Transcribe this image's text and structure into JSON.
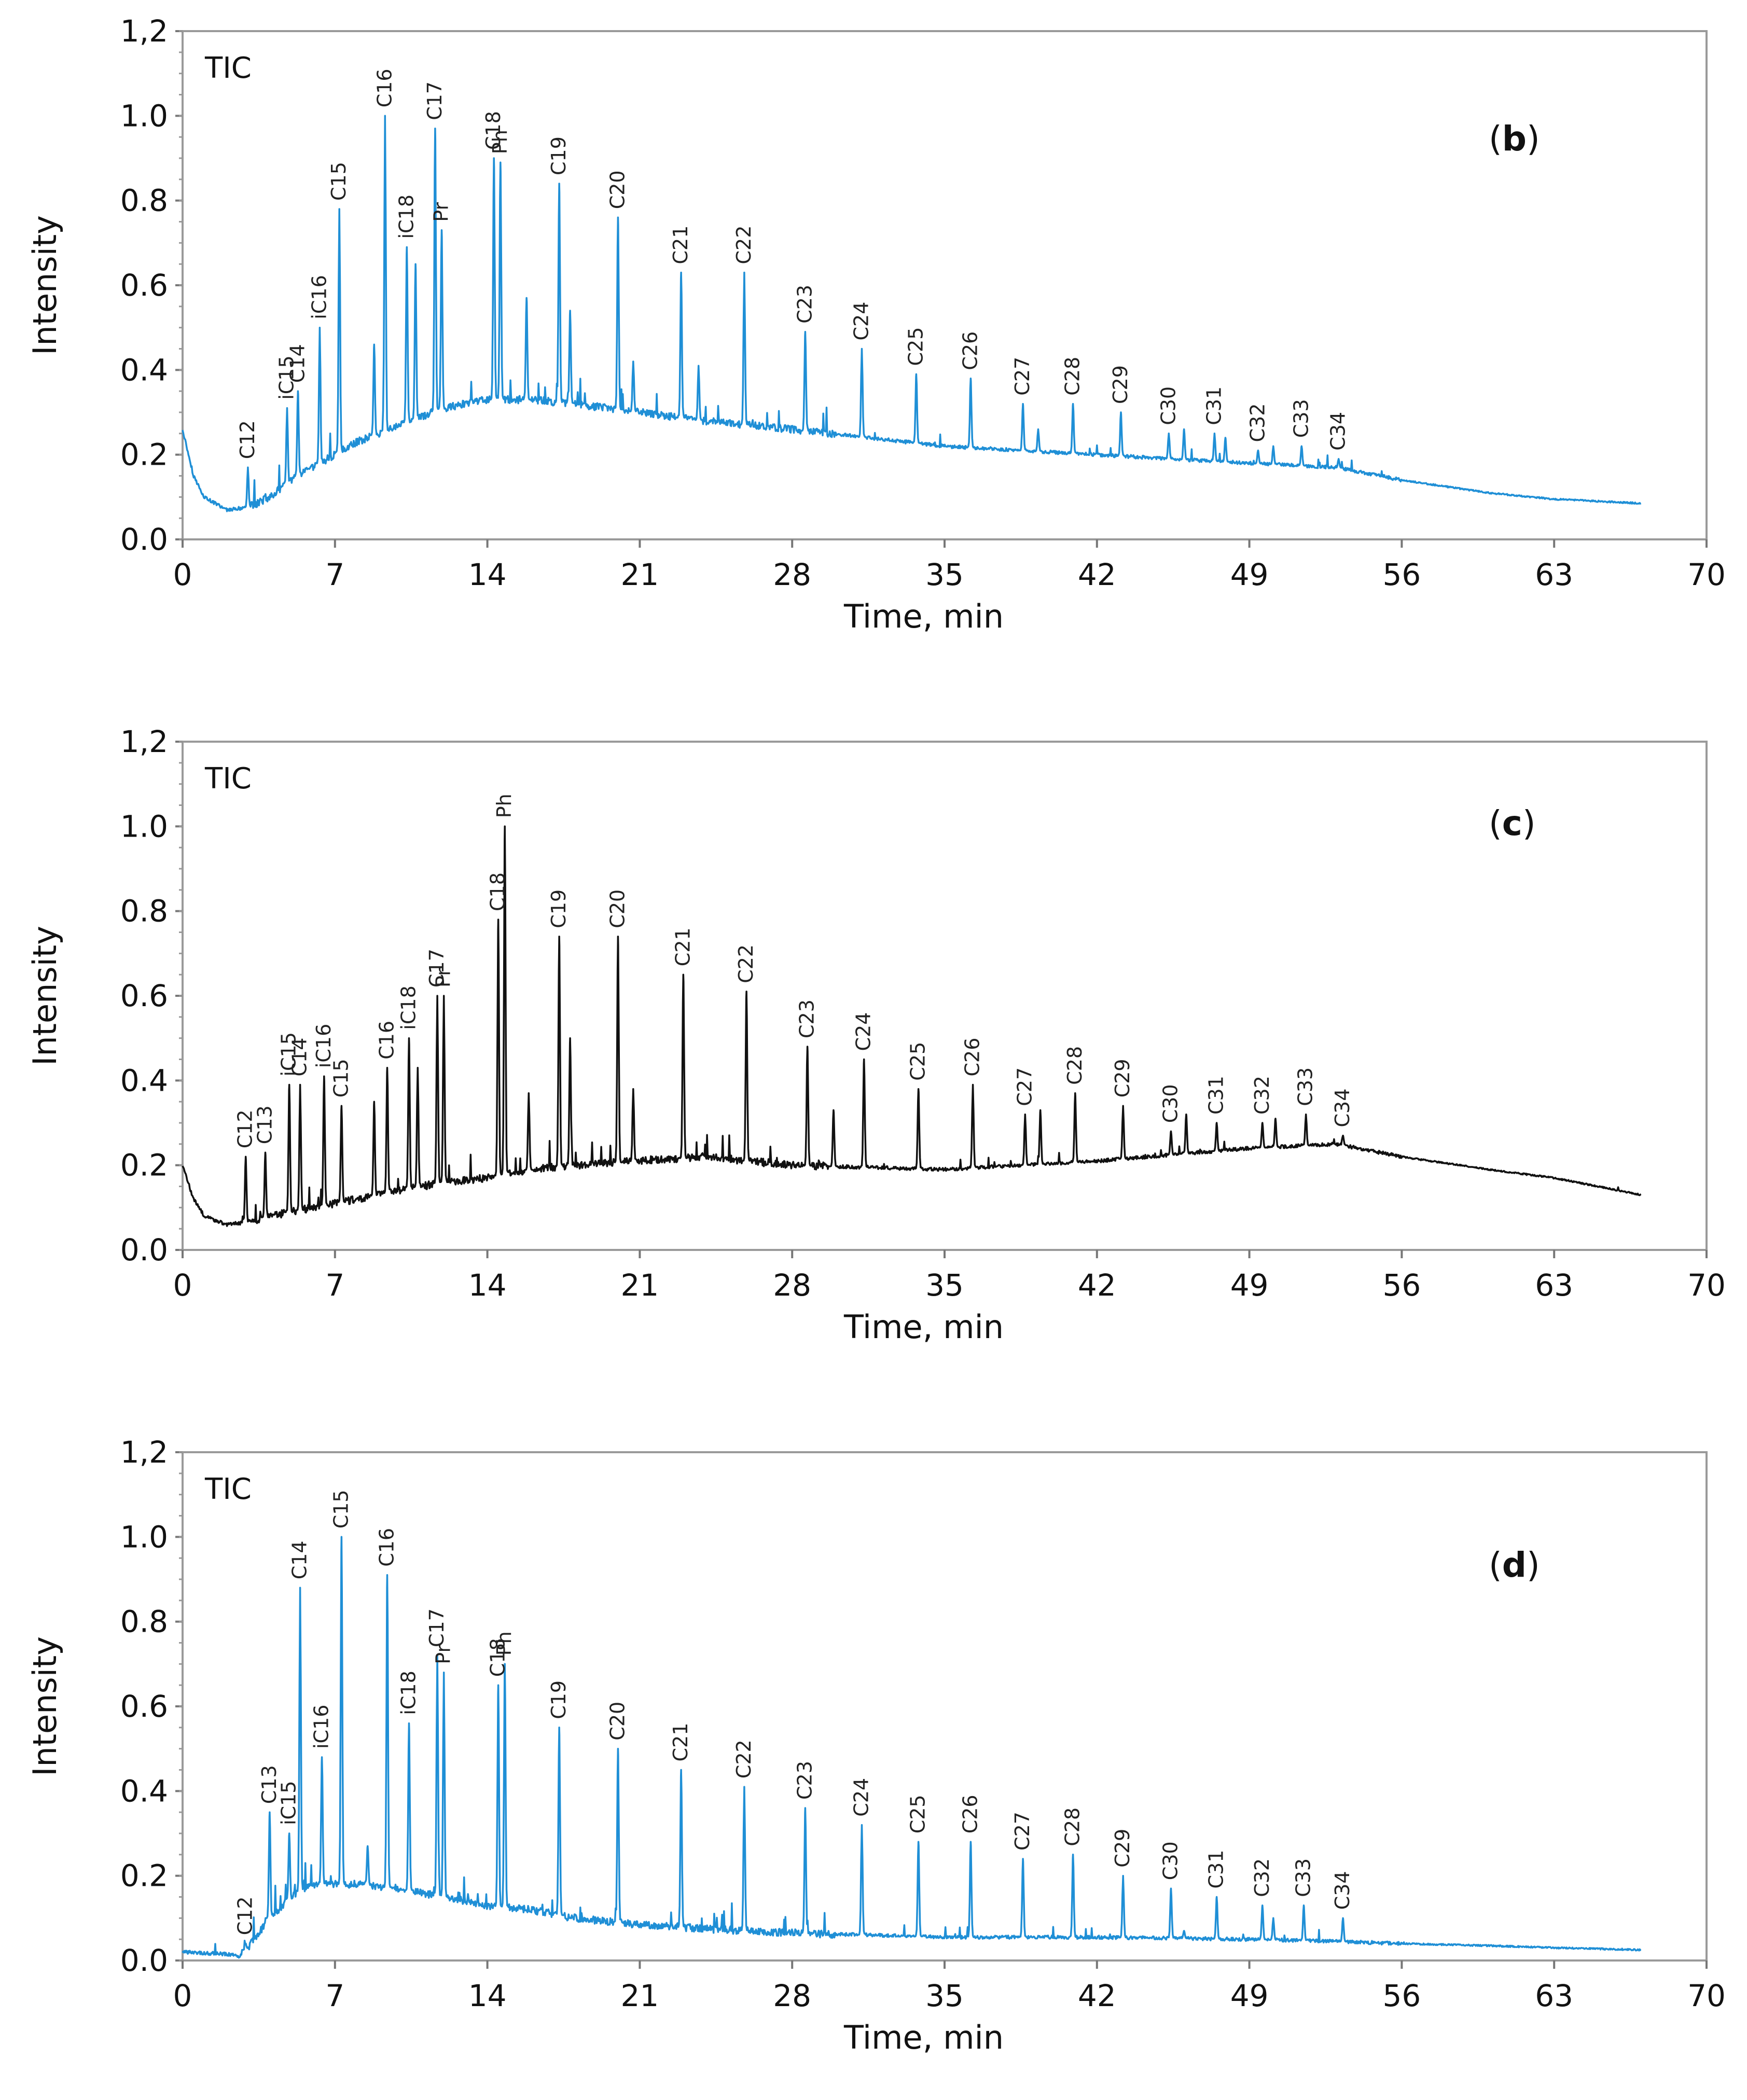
{
  "chart_data": [
    {
      "type": "line",
      "panel": "b",
      "panel_tag": {
        "open": "(",
        "letter": "b",
        "close": ")"
      },
      "tic_label": "TIC",
      "xlabel": "Time, min",
      "ylabel": "Intensity",
      "xlim": [
        0,
        70
      ],
      "ylim": [
        0,
        1.2
      ],
      "xticks": [
        0,
        7,
        14,
        21,
        28,
        35,
        42,
        49,
        56,
        63,
        70
      ],
      "yticks": [
        "0.0",
        "0.2",
        "0.4",
        "0.6",
        "0.8",
        "1.0",
        "1,2"
      ],
      "color": "#1f8fd6",
      "baseline": [
        [
          0,
          0.26
        ],
        [
          0.5,
          0.15
        ],
        [
          1,
          0.1
        ],
        [
          2,
          0.07
        ],
        [
          3,
          0.075
        ],
        [
          4,
          0.1
        ],
        [
          5,
          0.14
        ],
        [
          6,
          0.17
        ],
        [
          7,
          0.2
        ],
        [
          8,
          0.23
        ],
        [
          10,
          0.27
        ],
        [
          12,
          0.31
        ],
        [
          14,
          0.33
        ],
        [
          16,
          0.33
        ],
        [
          18,
          0.32
        ],
        [
          21,
          0.3
        ],
        [
          24,
          0.28
        ],
        [
          28,
          0.26
        ],
        [
          35,
          0.22
        ],
        [
          42,
          0.2
        ],
        [
          49,
          0.18
        ],
        [
          53,
          0.17
        ],
        [
          56,
          0.14
        ],
        [
          60,
          0.11
        ],
        [
          63,
          0.095
        ],
        [
          67,
          0.085
        ]
      ],
      "end_x": 67,
      "peaks": [
        {
          "label": "C12",
          "x": 3.0,
          "y": 0.17
        },
        {
          "label": "iC15",
          "x": 4.8,
          "y": 0.31
        },
        {
          "label": "C14",
          "x": 5.3,
          "y": 0.35
        },
        {
          "label": "iC16",
          "x": 6.3,
          "y": 0.5
        },
        {
          "label": "C15",
          "x": 7.2,
          "y": 0.78
        },
        {
          "label": "",
          "x": 8.8,
          "y": 0.46
        },
        {
          "label": "C16",
          "x": 9.3,
          "y": 1.0
        },
        {
          "label": "iC18",
          "x": 10.3,
          "y": 0.69
        },
        {
          "label": "",
          "x": 10.7,
          "y": 0.65
        },
        {
          "label": "C17",
          "x": 11.6,
          "y": 0.97
        },
        {
          "label": "Pr",
          "x": 11.9,
          "y": 0.73
        },
        {
          "label": "C18",
          "x": 14.3,
          "y": 0.9
        },
        {
          "label": "Ph",
          "x": 14.6,
          "y": 0.89
        },
        {
          "label": "",
          "x": 15.8,
          "y": 0.57
        },
        {
          "label": "C19",
          "x": 17.3,
          "y": 0.84
        },
        {
          "label": "",
          "x": 17.8,
          "y": 0.54
        },
        {
          "label": "C20",
          "x": 20.0,
          "y": 0.76
        },
        {
          "label": "",
          "x": 20.7,
          "y": 0.42
        },
        {
          "label": "C21",
          "x": 22.9,
          "y": 0.63
        },
        {
          "label": "",
          "x": 23.7,
          "y": 0.41
        },
        {
          "label": "C22",
          "x": 25.8,
          "y": 0.63
        },
        {
          "label": "C23",
          "x": 28.6,
          "y": 0.49
        },
        {
          "label": "C24",
          "x": 31.2,
          "y": 0.45
        },
        {
          "label": "C25",
          "x": 33.7,
          "y": 0.39
        },
        {
          "label": "C26",
          "x": 36.2,
          "y": 0.38
        },
        {
          "label": "C27",
          "x": 38.6,
          "y": 0.32
        },
        {
          "label": "",
          "x": 39.3,
          "y": 0.26
        },
        {
          "label": "C28",
          "x": 40.9,
          "y": 0.32
        },
        {
          "label": "C29",
          "x": 43.1,
          "y": 0.3
        },
        {
          "label": "C30",
          "x": 45.3,
          "y": 0.25
        },
        {
          "label": "",
          "x": 46.0,
          "y": 0.26
        },
        {
          "label": "C31",
          "x": 47.4,
          "y": 0.25
        },
        {
          "label": "",
          "x": 47.9,
          "y": 0.24
        },
        {
          "label": "C32",
          "x": 49.4,
          "y": 0.21
        },
        {
          "label": "",
          "x": 50.1,
          "y": 0.22
        },
        {
          "label": "C33",
          "x": 51.4,
          "y": 0.22
        },
        {
          "label": "C34",
          "x": 53.1,
          "y": 0.19
        }
      ]
    },
    {
      "type": "line",
      "panel": "c",
      "panel_tag": {
        "open": "(",
        "letter": "c",
        "close": ")"
      },
      "tic_label": "TIC",
      "xlabel": "Time, min",
      "ylabel": "Intensity",
      "xlim": [
        0,
        70
      ],
      "ylim": [
        0,
        1.2
      ],
      "xticks": [
        0,
        7,
        14,
        21,
        28,
        35,
        42,
        49,
        56,
        63,
        70
      ],
      "yticks": [
        "0.0",
        "0.2",
        "0.4",
        "0.6",
        "0.8",
        "1.0",
        "1,2"
      ],
      "color": "#111111",
      "baseline": [
        [
          0,
          0.2
        ],
        [
          0.5,
          0.12
        ],
        [
          1,
          0.08
        ],
        [
          2,
          0.06
        ],
        [
          3,
          0.065
        ],
        [
          4,
          0.08
        ],
        [
          6,
          0.1
        ],
        [
          8,
          0.12
        ],
        [
          10,
          0.14
        ],
        [
          12,
          0.16
        ],
        [
          14,
          0.17
        ],
        [
          16,
          0.19
        ],
        [
          18,
          0.2
        ],
        [
          21,
          0.21
        ],
        [
          24,
          0.22
        ],
        [
          28,
          0.2
        ],
        [
          35,
          0.19
        ],
        [
          42,
          0.21
        ],
        [
          49,
          0.24
        ],
        [
          53,
          0.25
        ],
        [
          56,
          0.22
        ],
        [
          60,
          0.19
        ],
        [
          63,
          0.17
        ],
        [
          67,
          0.13
        ]
      ],
      "end_x": 67,
      "peaks": [
        {
          "label": "C12",
          "x": 2.9,
          "y": 0.22
        },
        {
          "label": "C13",
          "x": 3.8,
          "y": 0.23
        },
        {
          "label": "iC15",
          "x": 4.9,
          "y": 0.39
        },
        {
          "label": "C14",
          "x": 5.4,
          "y": 0.39
        },
        {
          "label": "iC16",
          "x": 6.5,
          "y": 0.41
        },
        {
          "label": "C15",
          "x": 7.3,
          "y": 0.34
        },
        {
          "label": "",
          "x": 8.8,
          "y": 0.35
        },
        {
          "label": "C16",
          "x": 9.4,
          "y": 0.43
        },
        {
          "label": "iC18",
          "x": 10.4,
          "y": 0.5
        },
        {
          "label": "",
          "x": 10.8,
          "y": 0.43
        },
        {
          "label": "C17",
          "x": 11.7,
          "y": 0.6
        },
        {
          "label": "Pr",
          "x": 12.0,
          "y": 0.6
        },
        {
          "label": "C18",
          "x": 14.5,
          "y": 0.78
        },
        {
          "label": "Ph",
          "x": 14.8,
          "y": 1.0
        },
        {
          "label": "",
          "x": 15.9,
          "y": 0.37
        },
        {
          "label": "C19",
          "x": 17.3,
          "y": 0.74
        },
        {
          "label": "",
          "x": 17.8,
          "y": 0.5
        },
        {
          "label": "C20",
          "x": 20.0,
          "y": 0.74
        },
        {
          "label": "",
          "x": 20.7,
          "y": 0.38
        },
        {
          "label": "C21",
          "x": 23.0,
          "y": 0.65
        },
        {
          "label": "C22",
          "x": 25.9,
          "y": 0.61
        },
        {
          "label": "C23",
          "x": 28.7,
          "y": 0.48
        },
        {
          "label": "",
          "x": 29.9,
          "y": 0.33
        },
        {
          "label": "C24",
          "x": 31.3,
          "y": 0.45
        },
        {
          "label": "C25",
          "x": 33.8,
          "y": 0.38
        },
        {
          "label": "C26",
          "x": 36.3,
          "y": 0.39
        },
        {
          "label": "C27",
          "x": 38.7,
          "y": 0.32
        },
        {
          "label": "",
          "x": 39.4,
          "y": 0.33
        },
        {
          "label": "C28",
          "x": 41.0,
          "y": 0.37
        },
        {
          "label": "C29",
          "x": 43.2,
          "y": 0.34
        },
        {
          "label": "C30",
          "x": 45.4,
          "y": 0.28
        },
        {
          "label": "",
          "x": 46.1,
          "y": 0.32
        },
        {
          "label": "C31",
          "x": 47.5,
          "y": 0.3
        },
        {
          "label": "C32",
          "x": 49.6,
          "y": 0.3
        },
        {
          "label": "",
          "x": 50.2,
          "y": 0.31
        },
        {
          "label": "C33",
          "x": 51.6,
          "y": 0.32
        },
        {
          "label": "C34",
          "x": 53.3,
          "y": 0.27
        }
      ]
    },
    {
      "type": "line",
      "panel": "d",
      "panel_tag": {
        "open": "(",
        "letter": "d",
        "close": ")"
      },
      "tic_label": "TIC",
      "xlabel": "Time, min",
      "ylabel": "Intensity",
      "xlim": [
        0,
        70
      ],
      "ylim": [
        0,
        1.2
      ],
      "xticks": [
        0,
        7,
        14,
        21,
        28,
        35,
        42,
        49,
        56,
        63,
        70
      ],
      "yticks": [
        "0.0",
        "0.2",
        "0.4",
        "0.6",
        "0.8",
        "1.0",
        "1,2"
      ],
      "color": "#1f8fd6",
      "baseline": [
        [
          0,
          0.02
        ],
        [
          2,
          0.015
        ],
        [
          2.6,
          0.01
        ],
        [
          3,
          0.03
        ],
        [
          4,
          0.1
        ],
        [
          5,
          0.15
        ],
        [
          6,
          0.18
        ],
        [
          8,
          0.18
        ],
        [
          10,
          0.17
        ],
        [
          12,
          0.15
        ],
        [
          14,
          0.13
        ],
        [
          16,
          0.12
        ],
        [
          18,
          0.1
        ],
        [
          21,
          0.085
        ],
        [
          24,
          0.075
        ],
        [
          28,
          0.065
        ],
        [
          35,
          0.055
        ],
        [
          42,
          0.055
        ],
        [
          49,
          0.05
        ],
        [
          53,
          0.045
        ],
        [
          56,
          0.04
        ],
        [
          60,
          0.035
        ],
        [
          63,
          0.03
        ],
        [
          67,
          0.025
        ]
      ],
      "end_x": 67,
      "peaks": [
        {
          "label": "C12",
          "x": 2.9,
          "y": 0.04
        },
        {
          "label": "C13",
          "x": 4.0,
          "y": 0.35
        },
        {
          "label": "iC15",
          "x": 4.9,
          "y": 0.3
        },
        {
          "label": "C14",
          "x": 5.4,
          "y": 0.88
        },
        {
          "label": "iC16",
          "x": 6.4,
          "y": 0.48
        },
        {
          "label": "C15",
          "x": 7.3,
          "y": 1.0
        },
        {
          "label": "",
          "x": 8.5,
          "y": 0.27
        },
        {
          "label": "C16",
          "x": 9.4,
          "y": 0.91
        },
        {
          "label": "iC18",
          "x": 10.4,
          "y": 0.56
        },
        {
          "label": "C17",
          "x": 11.7,
          "y": 0.72
        },
        {
          "label": "Pr",
          "x": 12.0,
          "y": 0.68
        },
        {
          "label": "C18",
          "x": 14.5,
          "y": 0.65
        },
        {
          "label": "Ph",
          "x": 14.8,
          "y": 0.7
        },
        {
          "label": "C19",
          "x": 17.3,
          "y": 0.55
        },
        {
          "label": "C20",
          "x": 20.0,
          "y": 0.5
        },
        {
          "label": "C21",
          "x": 22.9,
          "y": 0.45
        },
        {
          "label": "C22",
          "x": 25.8,
          "y": 0.41
        },
        {
          "label": "C23",
          "x": 28.6,
          "y": 0.36
        },
        {
          "label": "C24",
          "x": 31.2,
          "y": 0.32
        },
        {
          "label": "C25",
          "x": 33.8,
          "y": 0.28
        },
        {
          "label": "C26",
          "x": 36.2,
          "y": 0.28
        },
        {
          "label": "C27",
          "x": 38.6,
          "y": 0.24
        },
        {
          "label": "C28",
          "x": 40.9,
          "y": 0.25
        },
        {
          "label": "C29",
          "x": 43.2,
          "y": 0.2
        },
        {
          "label": "C30",
          "x": 45.4,
          "y": 0.17
        },
        {
          "label": "",
          "x": 46.0,
          "y": 0.07
        },
        {
          "label": "C31",
          "x": 47.5,
          "y": 0.15
        },
        {
          "label": "C32",
          "x": 49.6,
          "y": 0.13
        },
        {
          "label": "",
          "x": 50.1,
          "y": 0.1
        },
        {
          "label": "C33",
          "x": 51.5,
          "y": 0.13
        },
        {
          "label": "C34",
          "x": 53.3,
          "y": 0.1
        }
      ]
    }
  ]
}
